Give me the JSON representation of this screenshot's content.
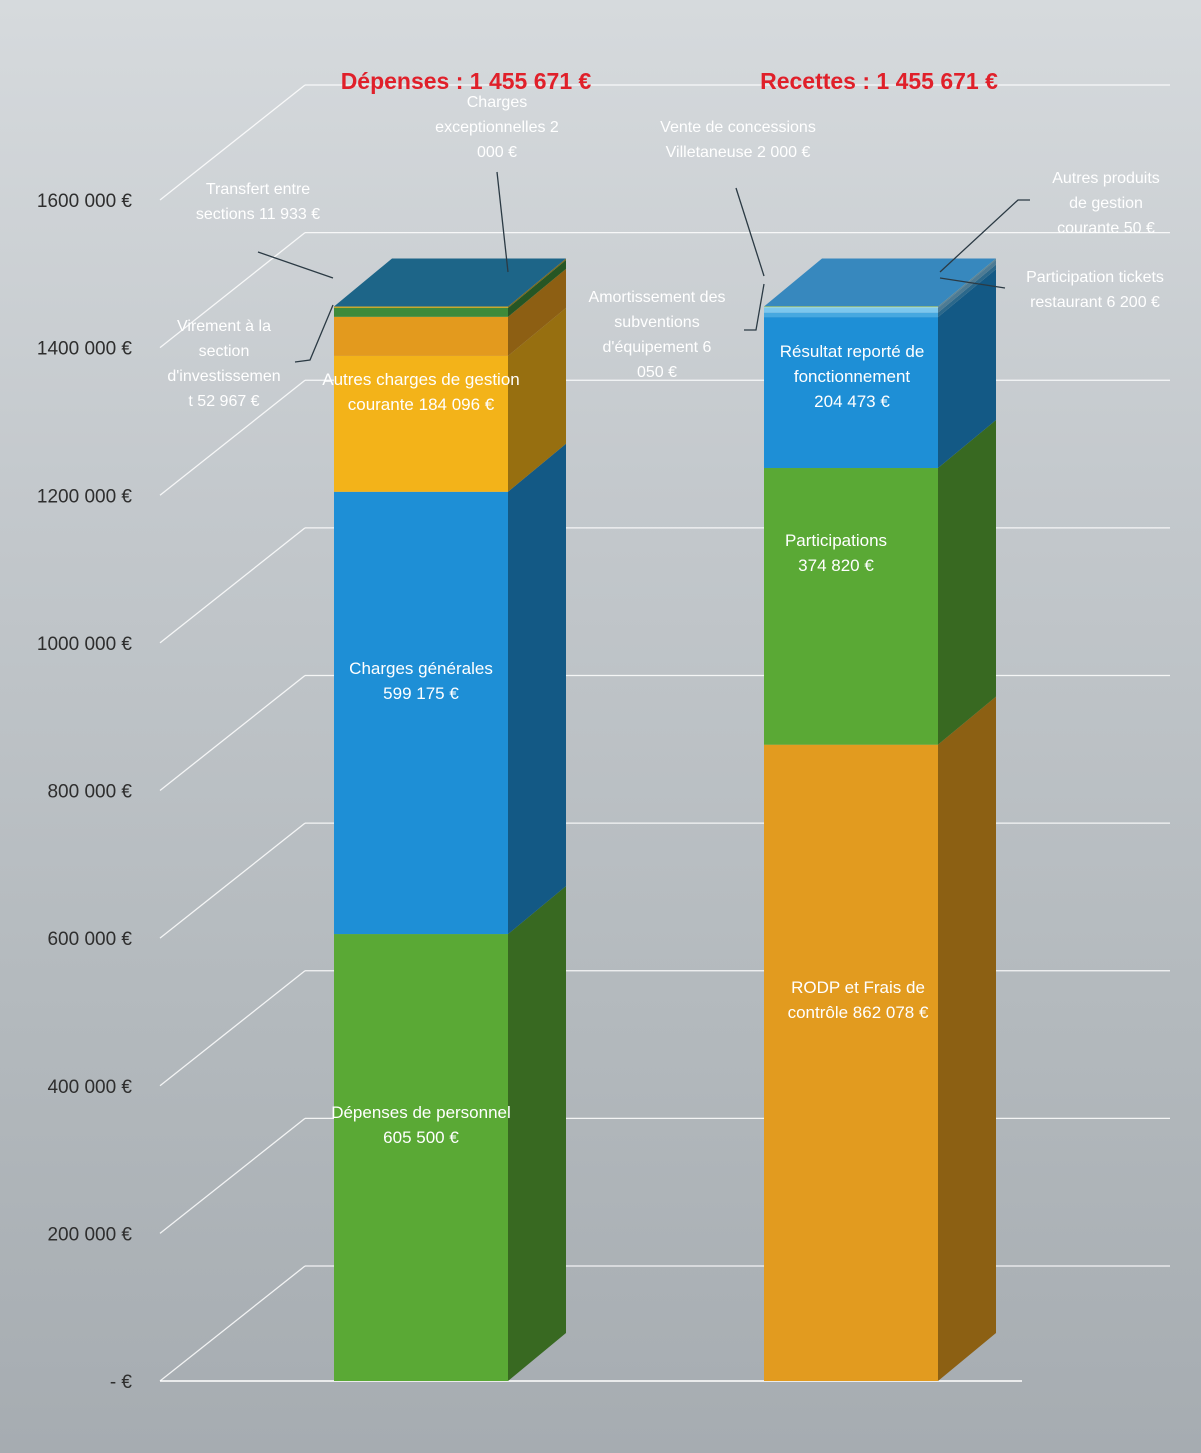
{
  "chart_data": {
    "type": "bar",
    "stacked": true,
    "three_d": true,
    "grid": true,
    "ylim": [
      0,
      1600000
    ],
    "yticks": [
      {
        "value": 0,
        "label": "- €"
      },
      {
        "value": 200000,
        "label": "200 000 €"
      },
      {
        "value": 400000,
        "label": "400 000 €"
      },
      {
        "value": 600000,
        "label": "600 000 €"
      },
      {
        "value": 800000,
        "label": "800 000 €"
      },
      {
        "value": 1000000,
        "label": "1000 000 €"
      },
      {
        "value": 1200000,
        "label": "1200 000 €"
      },
      {
        "value": 1400000,
        "label": "1400 000 €"
      },
      {
        "value": 1600000,
        "label": "1600 000 €"
      }
    ],
    "title_color": "#e0202a",
    "bars": [
      {
        "title": "Dépenses : 1 455 671 €",
        "segments": [
          {
            "value": 605500,
            "color": "#5aa935",
            "label": [
              "Dépenses de personnel",
              "605 500 €"
            ]
          },
          {
            "value": 599175,
            "color": "#1e8fd6",
            "label": [
              "Charges générales",
              "599 175 €"
            ]
          },
          {
            "value": 184096,
            "color": "#f3b319",
            "label": [
              "Autres charges de gestion",
              "courante 184 096 €"
            ]
          },
          {
            "value": 52967,
            "color": "#e39a1e",
            "label": [
              "Virement à la",
              "section",
              "d'investissemen",
              "t  52 967 €"
            ]
          },
          {
            "value": 11933,
            "color": "#3d8a3a",
            "label": [
              "Transfert entre",
              "sections  11 933 €"
            ]
          },
          {
            "value": 2000,
            "color": "#c8a82c",
            "label": [
              "Charges",
              "exceptionnelles 2",
              "000 €"
            ]
          }
        ]
      },
      {
        "title": "Recettes  : 1 455 671 €",
        "segments": [
          {
            "value": 862078,
            "color": "#e29b1f",
            "label": [
              "RODP et Frais de",
              "contrôle  862 078 €"
            ]
          },
          {
            "value": 374820,
            "color": "#5aa935",
            "label": [
              "Participations",
              "374 820 €"
            ]
          },
          {
            "value": 204473,
            "color": "#1e8fd6",
            "label": [
              "Résultat reporté de",
              "fonctionnement",
              "204 473 €"
            ]
          },
          {
            "value": 6050,
            "color": "#46a8e0",
            "label": [
              "Amortissement des",
              "subventions",
              "d'équipement  6",
              "050 €"
            ]
          },
          {
            "value": 6200,
            "color": "#7cc7ee",
            "label": [
              "Participation tickets",
              "restaurant  6 200 €"
            ]
          },
          {
            "value": 2000,
            "color": "#8fd2f2",
            "label": [
              "Vente de concessions",
              "Villetaneuse  2 000 €"
            ]
          },
          {
            "value": 50,
            "color": "#d8e24a",
            "label": [
              "Autres produits",
              "de gestion",
              "courante  50 €"
            ]
          }
        ]
      }
    ]
  }
}
